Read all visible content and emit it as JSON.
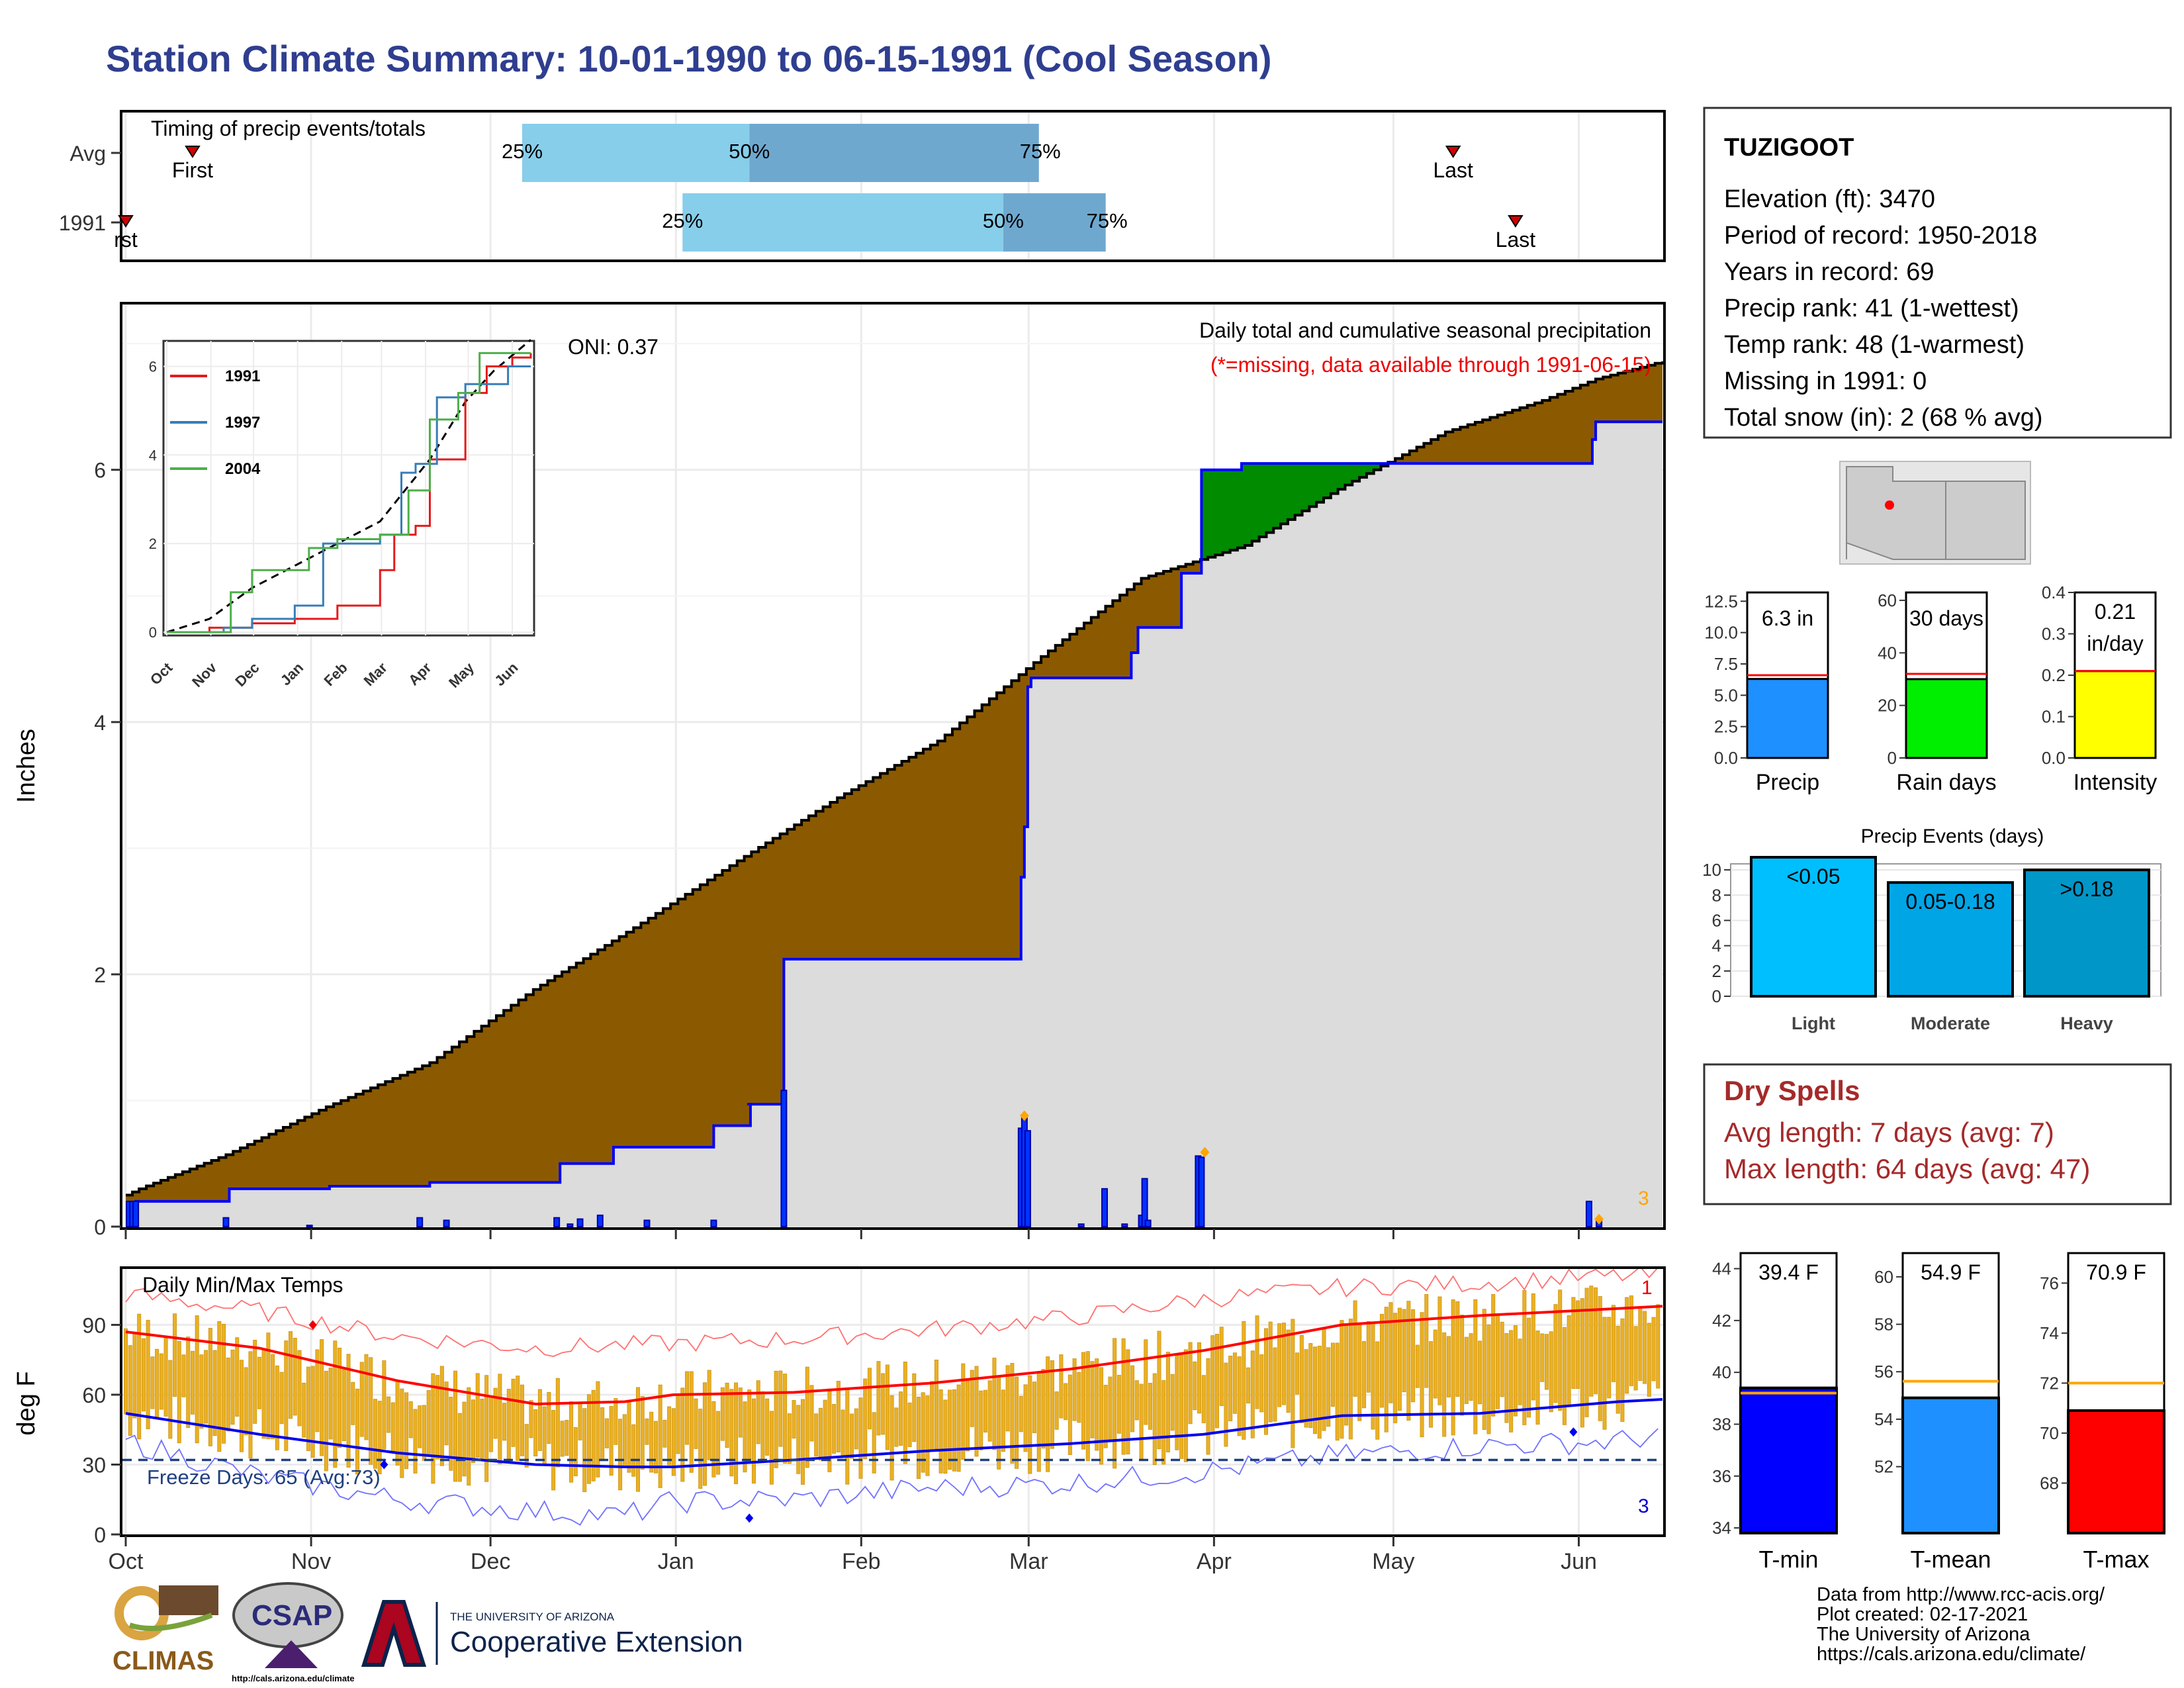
{
  "header": {
    "title": "Station Climate Summary: 10-01-1990 to 06-15-1991 (Cool Season)"
  },
  "timing": {
    "title": "Timing of precip events/totals",
    "rows": [
      {
        "label": "Avg",
        "first_day": 15,
        "q25_day": 89,
        "q50_day": 140,
        "q75_day": 205,
        "last_day": 298,
        "first_label": "First",
        "last_label": "Last",
        "q25_label": "25%",
        "q50_label": "50%",
        "q75_label": "75%"
      },
      {
        "label": "1991",
        "first_day": 0,
        "q25_day": 125,
        "q50_day": 197,
        "q75_day": 220,
        "last_day": 312,
        "first_label": "rst",
        "last_label": "Last",
        "q25_label": "25%",
        "q50_label": "50%",
        "q75_label": "75%"
      }
    ],
    "colors": {
      "inner": "#6fa8cf",
      "outer": "#87ceeb",
      "marker": "#d40000"
    }
  },
  "precip_panel": {
    "ylabel": "Inches",
    "oni": "ONI: 0.37",
    "subtitle": "Daily total and cumulative seasonal precipitation",
    "missing_note": "(*=missing, data available through 1991-06-15)",
    "corner_count": "3"
  },
  "temp_panel": {
    "title": "Daily Min/Max Temps",
    "ylabel": "deg F",
    "freeze_text": "Freeze Days: 65 (Avg:73)",
    "record_high_count": "1",
    "record_low_count": "3"
  },
  "station": {
    "name": "TUZIGOOT",
    "lines": [
      "Elevation (ft): 3470",
      "Period of record: 1950-2018",
      "Years in record: 69",
      "Precip rank: 41 (1-wettest)",
      "Temp rank: 48 (1-warmest)",
      "Missing in 1991: 0",
      "Total snow (in): 2 (68 % avg)"
    ]
  },
  "mini_bars": [
    {
      "name": "Precip",
      "value": 6.3,
      "avg": 6.6,
      "label": "6.3 in",
      "ylim": [
        0,
        13.2
      ],
      "ticks": [
        "0.0",
        "2.5",
        "5.0",
        "7.5",
        "10.0",
        "12.5"
      ],
      "tickvals": [
        0,
        2.5,
        5,
        7.5,
        10,
        12.5
      ],
      "color": "#1e90ff"
    },
    {
      "name": "Rain days",
      "value": 30,
      "avg": 32,
      "label": "30 days",
      "ylim": [
        0,
        63
      ],
      "ticks": [
        "0",
        "20",
        "40",
        "60"
      ],
      "tickvals": [
        0,
        20,
        40,
        60
      ],
      "color": "#00ee00"
    },
    {
      "name": "Intensity",
      "value": 0.21,
      "avg": 0.21,
      "label": "0.21 in/day",
      "ylim": [
        0,
        0.4
      ],
      "ticks": [
        "0.0",
        "0.1",
        "0.2",
        "0.3",
        "0.4"
      ],
      "tickvals": [
        0,
        0.1,
        0.2,
        0.3,
        0.4
      ],
      "color": "#ffff00"
    }
  ],
  "events": {
    "title": "Precip Events (days)",
    "bars": [
      {
        "name": "Light",
        "value": 11,
        "label": "<0.05",
        "color": "#00bfff"
      },
      {
        "name": "Moderate",
        "value": 9,
        "label": "0.05-0.18",
        "color": "#00a5e6"
      },
      {
        "name": "Heavy",
        "value": 10,
        "label": ">0.18",
        "color": "#0096c8"
      }
    ],
    "ticks": [
      "0",
      "2",
      "4",
      "6",
      "8",
      "10"
    ]
  },
  "dry_spells": {
    "title": "Dry Spells",
    "avg_line": "Avg length: 7 days (avg: 7)",
    "max_line": "Max length: 64 days (avg: 47)"
  },
  "temp_bars": [
    {
      "name": "T-min",
      "value": 39.4,
      "avg": 39.2,
      "label": "39.4 F",
      "ylim": [
        33.8,
        44.6
      ],
      "ticks": [
        "34",
        "36",
        "38",
        "40",
        "42",
        "44"
      ],
      "tickvals": [
        34,
        36,
        38,
        40,
        42,
        44
      ],
      "color": "#0000ff"
    },
    {
      "name": "T-mean",
      "value": 54.9,
      "avg": 55.6,
      "label": "54.9 F",
      "ylim": [
        49.2,
        61
      ],
      "ticks": [
        "52",
        "54",
        "56",
        "58",
        "60"
      ],
      "tickvals": [
        52,
        54,
        56,
        58,
        60
      ],
      "color": "#1e90ff"
    },
    {
      "name": "T-max",
      "value": 70.9,
      "avg": 72.0,
      "label": "70.9 F",
      "ylim": [
        66,
        77.2
      ],
      "ticks": [
        "68",
        "70",
        "72",
        "74",
        "76"
      ],
      "tickvals": [
        68,
        70,
        72,
        74,
        76
      ],
      "color": "#ff0000"
    }
  ],
  "footer": {
    "lines": [
      "Data from http://www.rcc-acis.org/",
      "Plot created: 02-17-2021",
      "The University of Arizona",
      "https://cals.arizona.edu/climate/"
    ],
    "logos": {
      "climas": "CLIMAS",
      "csap": "CSAP",
      "csap_url": "http://cals.arizona.edu/climate",
      "ua_small": "THE UNIVERSITY OF ARIZONA",
      "ua_big": "Cooperative Extension"
    }
  },
  "chart_data": [
    {
      "type": "area",
      "title": "Daily total and cumulative seasonal precipitation",
      "ylabel": "Inches",
      "xlabel": "",
      "ylim": [
        0,
        7.3
      ],
      "x_ticks": [
        "Oct",
        "Nov",
        "Dec",
        "Jan",
        "Feb",
        "Mar",
        "Apr",
        "May",
        "Jun"
      ],
      "y_ticks": [
        0,
        2,
        4,
        6
      ],
      "cumulative_normal": [
        [
          0,
          0.25
        ],
        [
          4,
          0.3
        ],
        [
          30,
          0.57
        ],
        [
          60,
          0.95
        ],
        [
          91,
          1.3
        ],
        [
          122,
          1.88
        ],
        [
          152,
          2.37
        ],
        [
          183,
          2.9
        ],
        [
          213,
          3.4
        ],
        [
          243,
          3.85
        ],
        [
          274,
          4.52
        ],
        [
          304,
          5.14
        ],
        [
          335,
          5.4
        ],
        [
          365,
          5.88
        ],
        [
          395,
          6.3
        ],
        [
          424,
          6.55
        ],
        [
          440,
          6.72
        ],
        [
          460,
          6.86
        ]
      ],
      "cumulative_observed": [
        [
          0,
          0.0
        ],
        [
          3,
          0.2
        ],
        [
          30,
          0.2
        ],
        [
          31,
          0.3
        ],
        [
          60,
          0.3
        ],
        [
          61,
          0.32
        ],
        [
          90,
          0.32
        ],
        [
          91,
          0.35
        ],
        [
          129,
          0.35
        ],
        [
          130,
          0.5
        ],
        [
          145,
          0.5
        ],
        [
          146,
          0.63
        ],
        [
          175,
          0.63
        ],
        [
          176,
          0.8
        ],
        [
          186,
          0.8
        ],
        [
          187,
          0.97
        ],
        [
          186,
          0.97
        ],
        [
          196,
          0.97
        ],
        [
          197,
          2.12
        ],
        [
          267,
          2.12
        ],
        [
          268,
          2.77
        ],
        [
          269,
          3.17
        ],
        [
          270,
          4.28
        ],
        [
          271,
          4.35
        ],
        [
          300,
          4.35
        ],
        [
          301,
          4.55
        ],
        [
          303,
          4.75
        ],
        [
          315,
          4.75
        ],
        [
          316,
          5.18
        ],
        [
          321,
          5.18
        ],
        [
          322,
          6.0
        ],
        [
          333,
          6.0
        ],
        [
          334,
          6.05
        ],
        [
          438,
          6.05
        ],
        [
          439,
          6.24
        ],
        [
          440,
          6.38
        ],
        [
          460,
          6.38
        ]
      ],
      "daily_precip": [
        [
          1,
          0.2
        ],
        [
          2,
          0.2
        ],
        [
          3,
          0.2
        ],
        [
          30,
          0.07
        ],
        [
          55,
          0.01
        ],
        [
          88,
          0.07
        ],
        [
          96,
          0.05
        ],
        [
          129,
          0.07
        ],
        [
          133,
          0.02
        ],
        [
          136,
          0.06
        ],
        [
          142,
          0.09
        ],
        [
          156,
          0.05
        ],
        [
          176,
          0.05
        ],
        [
          197,
          1.08
        ],
        [
          268,
          0.78
        ],
        [
          269,
          0.86
        ],
        [
          270,
          0.76
        ],
        [
          286,
          0.02
        ],
        [
          293,
          0.3
        ],
        [
          299,
          0.02
        ],
        [
          304,
          0.09
        ],
        [
          305,
          0.38
        ],
        [
          306,
          0.05
        ],
        [
          321,
          0.56
        ],
        [
          322,
          0.55
        ],
        [
          438,
          0.2
        ],
        [
          441,
          0.05
        ]
      ],
      "missing_markers": [
        [
          269,
          0.88
        ],
        [
          323,
          0.59
        ],
        [
          441,
          0.06
        ]
      ],
      "inset": {
        "series": [
          {
            "name": "1991",
            "color": "#e41a1c",
            "values": [
              [
                0,
                0.0
              ],
              [
                30,
                0.1
              ],
              [
                60,
                0.2
              ],
              [
                90,
                0.3
              ],
              [
                120,
                0.6
              ],
              [
                150,
                1.4
              ],
              [
                160,
                2.2
              ],
              [
                175,
                2.4
              ],
              [
                185,
                3.9
              ],
              [
                210,
                5.4
              ],
              [
                225,
                6.0
              ],
              [
                243,
                6.2
              ],
              [
                256,
                6.3
              ]
            ]
          },
          {
            "name": "1997",
            "color": "#377eb8",
            "values": [
              [
                0,
                0.0
              ],
              [
                40,
                0.1
              ],
              [
                60,
                0.3
              ],
              [
                90,
                0.6
              ],
              [
                110,
                2.0
              ],
              [
                150,
                2.2
              ],
              [
                165,
                3.6
              ],
              [
                175,
                3.8
              ],
              [
                190,
                5.3
              ],
              [
                210,
                5.6
              ],
              [
                240,
                6.0
              ],
              [
                256,
                6.0
              ]
            ]
          },
          {
            "name": "2004",
            "color": "#4daf4a",
            "values": [
              [
                0,
                0.0
              ],
              [
                40,
                0.0
              ],
              [
                45,
                0.9
              ],
              [
                60,
                1.4
              ],
              [
                100,
                1.9
              ],
              [
                120,
                2.1
              ],
              [
                150,
                2.2
              ],
              [
                170,
                3.2
              ],
              [
                185,
                4.8
              ],
              [
                205,
                5.4
              ],
              [
                220,
                6.3
              ],
              [
                256,
                6.3
              ]
            ]
          }
        ],
        "ylim": [
          0,
          6.5
        ],
        "x_ticks": [
          "Oct",
          "Nov",
          "Dec",
          "Jan",
          "Feb",
          "Mar",
          "Apr",
          "May",
          "Jun"
        ],
        "y_ticks": [
          0,
          2,
          4,
          6
        ]
      }
    },
    {
      "type": "line",
      "title": "Daily Min/Max Temps",
      "ylabel": "deg F",
      "ylim": [
        0,
        114
      ],
      "x_ticks": [
        "Oct",
        "Nov",
        "Dec",
        "Jan",
        "Feb",
        "Mar",
        "Apr",
        "May",
        "Jun"
      ],
      "y_ticks": [
        0,
        30,
        60,
        90
      ],
      "freeze_line": 32,
      "normal_high": [
        [
          0,
          87
        ],
        [
          30,
          80
        ],
        [
          61,
          66
        ],
        [
          92,
          56
        ],
        [
          112,
          57
        ],
        [
          123,
          60
        ],
        [
          150,
          61
        ],
        [
          181,
          65
        ],
        [
          212,
          71
        ],
        [
          242,
          79
        ],
        [
          273,
          90
        ],
        [
          304,
          94
        ],
        [
          335,
          97
        ],
        [
          345,
          98
        ]
      ],
      "normal_low": [
        [
          0,
          52
        ],
        [
          30,
          43
        ],
        [
          61,
          35
        ],
        [
          92,
          30
        ],
        [
          112,
          29
        ],
        [
          123,
          29
        ],
        [
          150,
          32
        ],
        [
          181,
          36
        ],
        [
          212,
          39
        ],
        [
          242,
          43
        ],
        [
          273,
          51
        ],
        [
          304,
          52
        ],
        [
          335,
          57
        ],
        [
          345,
          58
        ]
      ],
      "record_high": [
        [
          0,
          103
        ],
        [
          30,
          96
        ],
        [
          61,
          85
        ],
        [
          92,
          80
        ],
        [
          123,
          82
        ],
        [
          150,
          84
        ],
        [
          181,
          88
        ],
        [
          212,
          93
        ],
        [
          242,
          101
        ],
        [
          273,
          106
        ],
        [
          304,
          108
        ],
        [
          335,
          111
        ],
        [
          345,
          111
        ]
      ],
      "record_low": [
        [
          0,
          40
        ],
        [
          30,
          25
        ],
        [
          61,
          15
        ],
        [
          92,
          10
        ],
        [
          112,
          8
        ],
        [
          123,
          14
        ],
        [
          150,
          15
        ],
        [
          181,
          20
        ],
        [
          212,
          22
        ],
        [
          242,
          27
        ],
        [
          273,
          34
        ],
        [
          304,
          38
        ],
        [
          335,
          40
        ],
        [
          345,
          43
        ]
      ],
      "observed_range": [
        [
          0,
          52,
          87
        ],
        [
          30,
          43,
          80
        ],
        [
          61,
          35,
          68
        ],
        [
          92,
          30,
          57
        ],
        [
          112,
          28,
          58
        ],
        [
          123,
          31,
          60
        ],
        [
          150,
          32,
          66
        ],
        [
          181,
          36,
          70
        ],
        [
          212,
          39,
          73
        ],
        [
          242,
          42,
          80
        ],
        [
          273,
          46,
          85
        ],
        [
          304,
          49,
          88
        ],
        [
          335,
          52,
          92
        ],
        [
          345,
          56,
          95
        ]
      ],
      "record_markers": [
        [
          42,
          90
        ],
        [
          58,
          30
        ],
        [
          140,
          7
        ],
        [
          325,
          44
        ]
      ]
    }
  ]
}
